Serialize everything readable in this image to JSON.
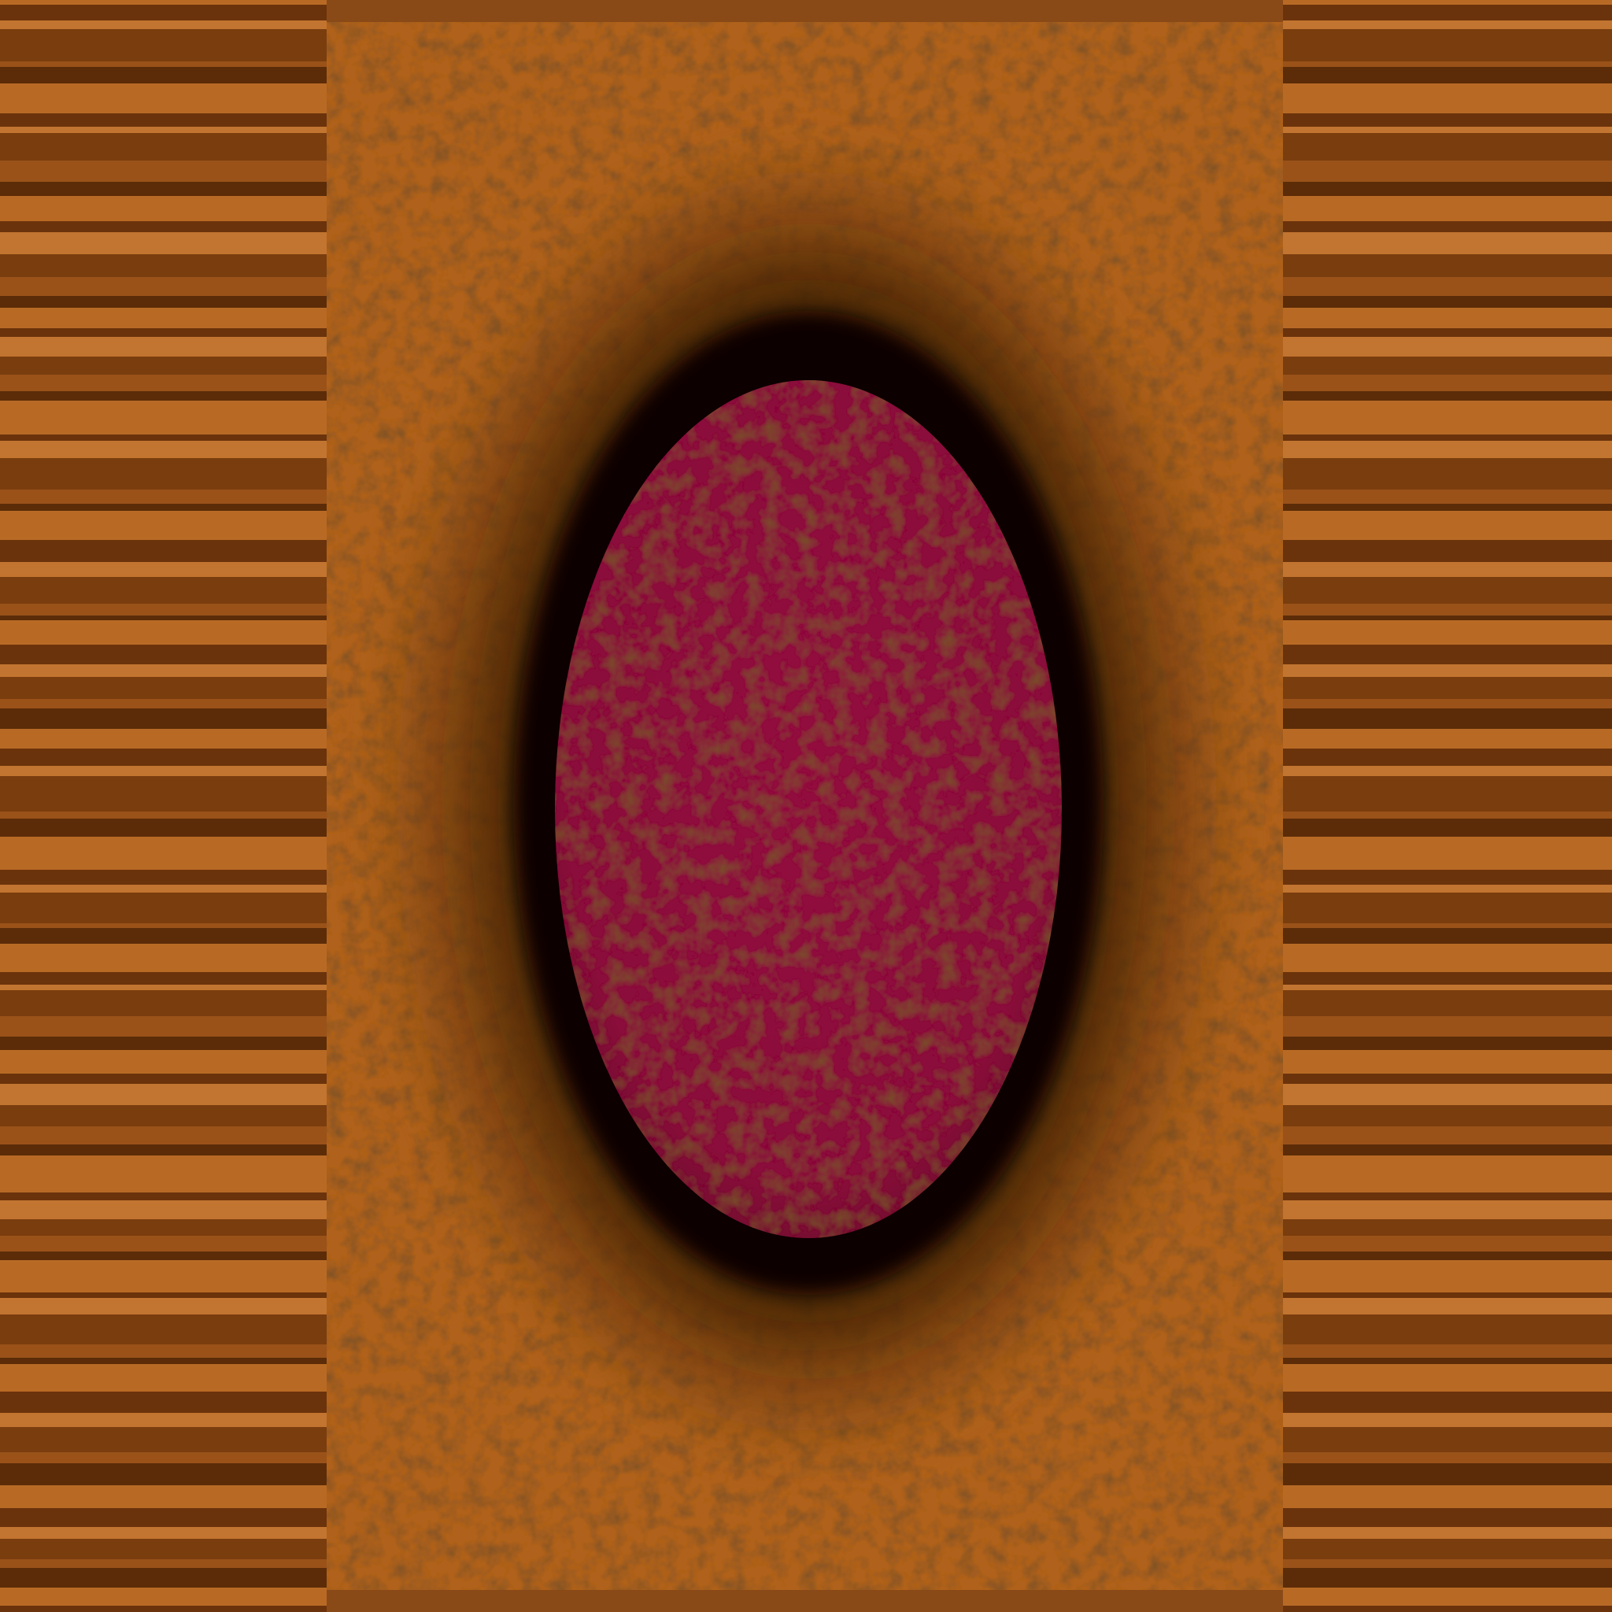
{
  "scene": {
    "name": "textured-card-back",
    "colors": {
      "frame": "#b0621f",
      "frame_dark": "#6e3a0f",
      "shadow": "#1c0a02",
      "rim": "#0d0403",
      "gem": "#8e0f3c",
      "gem_dark": "#5f0a28",
      "stripe_light": "#b86a25",
      "stripe_dark": "#5c2c08"
    }
  }
}
